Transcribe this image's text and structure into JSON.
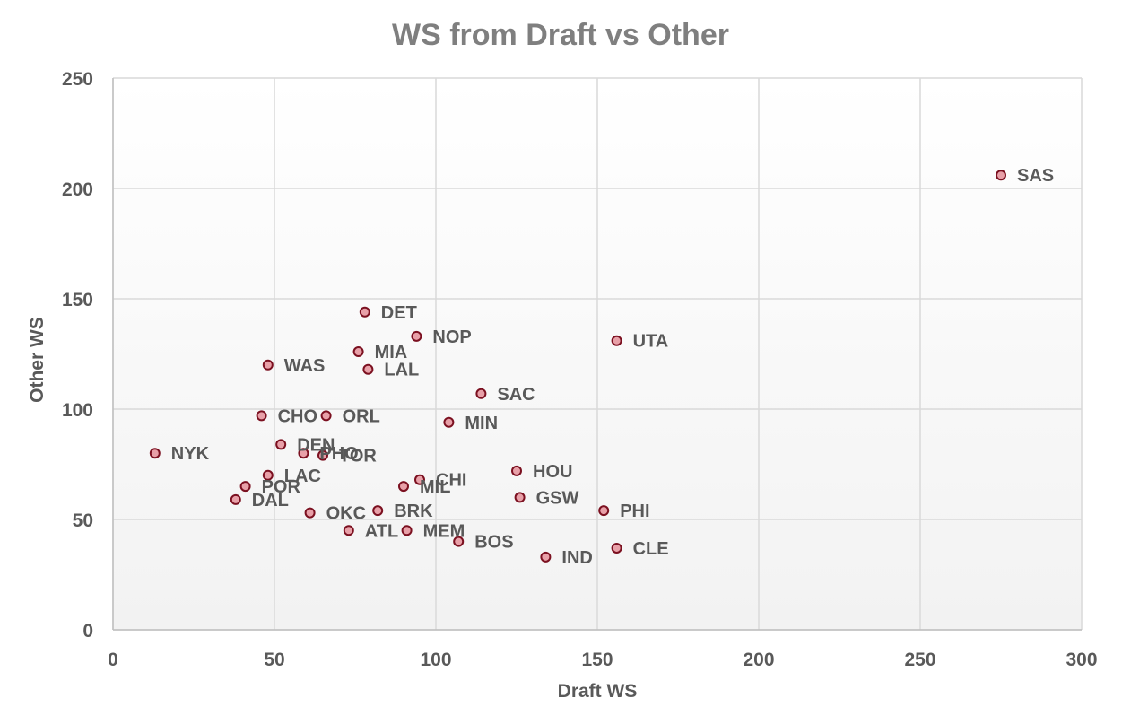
{
  "colors": {
    "marker_fill": "#e8a0a8",
    "marker_stroke": "#7b1020",
    "grid": "#d9d9d9",
    "text": "#595959",
    "title": "#7f7f7f"
  },
  "chart_data": {
    "type": "scatter",
    "title": "WS from Draft vs Other",
    "xlabel": "Draft WS",
    "ylabel": "Other WS",
    "xlim": [
      0,
      300
    ],
    "ylim": [
      0,
      250
    ],
    "xticks": [
      0,
      50,
      100,
      150,
      200,
      250,
      300
    ],
    "yticks": [
      0,
      50,
      100,
      150,
      200,
      250
    ],
    "grid": true,
    "legend": "none",
    "points": [
      {
        "label": "SAS",
        "x": 275,
        "y": 206
      },
      {
        "label": "DET",
        "x": 78,
        "y": 144
      },
      {
        "label": "NOP",
        "x": 94,
        "y": 133
      },
      {
        "label": "UTA",
        "x": 156,
        "y": 131
      },
      {
        "label": "MIA",
        "x": 76,
        "y": 126
      },
      {
        "label": "WAS",
        "x": 48,
        "y": 120
      },
      {
        "label": "LAL",
        "x": 79,
        "y": 118
      },
      {
        "label": "SAC",
        "x": 114,
        "y": 107
      },
      {
        "label": "CHO",
        "x": 46,
        "y": 97
      },
      {
        "label": "ORL",
        "x": 66,
        "y": 97
      },
      {
        "label": "MIN",
        "x": 104,
        "y": 94
      },
      {
        "label": "DEN",
        "x": 52,
        "y": 84
      },
      {
        "label": "NYK",
        "x": 13,
        "y": 80
      },
      {
        "label": "PHO",
        "x": 59,
        "y": 80
      },
      {
        "label": "TOR",
        "x": 65,
        "y": 79
      },
      {
        "label": "HOU",
        "x": 125,
        "y": 72
      },
      {
        "label": "LAC",
        "x": 48,
        "y": 70
      },
      {
        "label": "CHI",
        "x": 95,
        "y": 68
      },
      {
        "label": "POR",
        "x": 41,
        "y": 65
      },
      {
        "label": "MIL",
        "x": 90,
        "y": 65
      },
      {
        "label": "GSW",
        "x": 126,
        "y": 60
      },
      {
        "label": "DAL",
        "x": 38,
        "y": 59
      },
      {
        "label": "PHI",
        "x": 152,
        "y": 54
      },
      {
        "label": "OKC",
        "x": 61,
        "y": 53
      },
      {
        "label": "BRK",
        "x": 82,
        "y": 54
      },
      {
        "label": "ATL",
        "x": 73,
        "y": 45
      },
      {
        "label": "MEM",
        "x": 91,
        "y": 45
      },
      {
        "label": "BOS",
        "x": 107,
        "y": 40
      },
      {
        "label": "CLE",
        "x": 156,
        "y": 37
      },
      {
        "label": "IND",
        "x": 134,
        "y": 33
      }
    ]
  }
}
